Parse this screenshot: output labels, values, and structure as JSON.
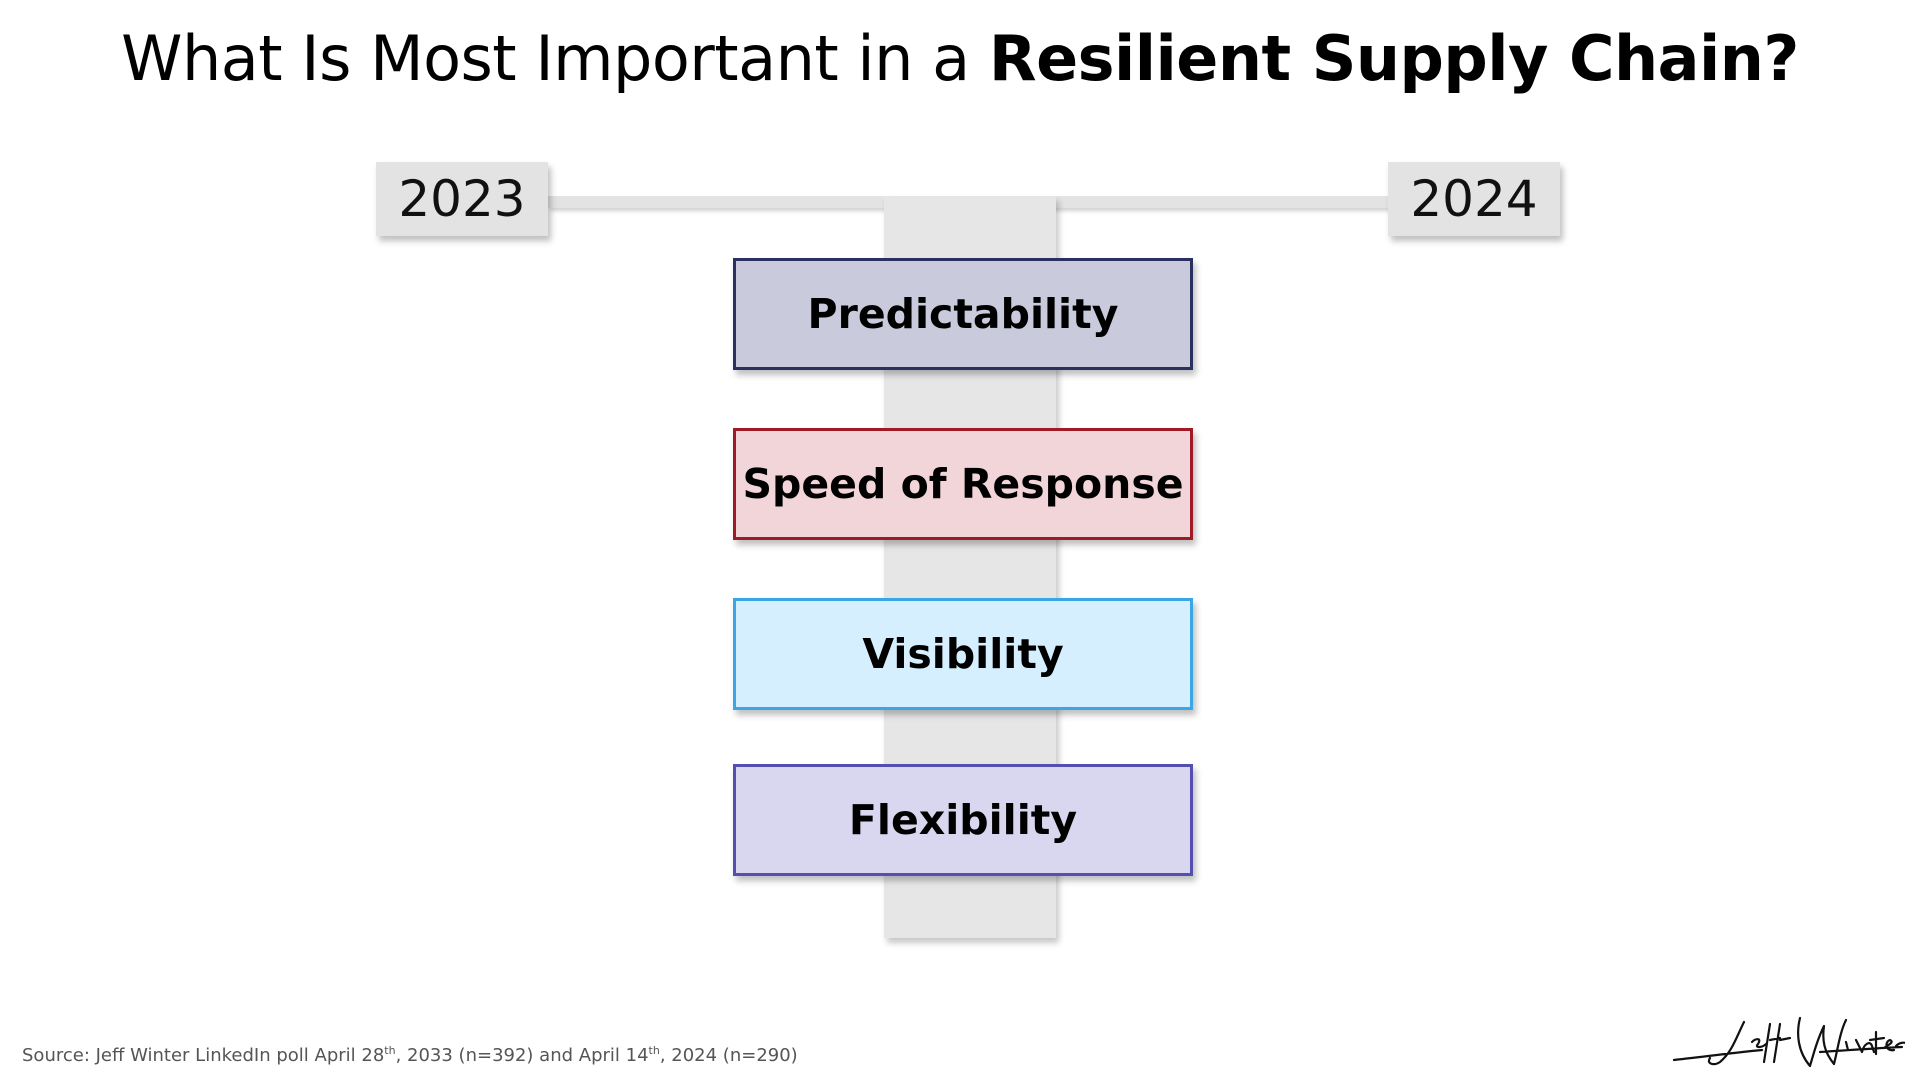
{
  "title": {
    "regular": "What Is Most Important in a ",
    "bold": "Resilient Supply Chain?"
  },
  "years": {
    "left": "2023",
    "right": "2024"
  },
  "items": [
    {
      "label": "Predictability",
      "fill": "#c9cbdc",
      "border": "#2a3060"
    },
    {
      "label": "Speed of Response",
      "fill": "#f2d5d9",
      "border": "#9e1b26"
    },
    {
      "label": "Visibility",
      "fill": "#d6efff",
      "border": "#3aa6e6"
    },
    {
      "label": "Flexibility",
      "fill": "#d9d6f0",
      "border": "#5550b0"
    }
  ],
  "source": {
    "part1": "Source: Jeff Winter LinkedIn poll April 28",
    "sup1": "th",
    "part2": ", 2033 (n=392) and April 14",
    "sup2": "th",
    "part3": ", 2024 (n=290)"
  },
  "signature": "Jeff Winter"
}
